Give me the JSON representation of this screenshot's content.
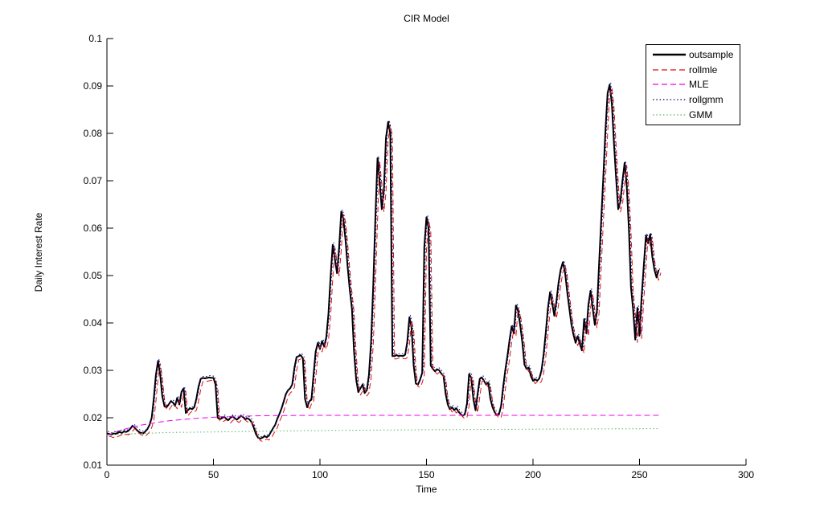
{
  "figure": {
    "title": "CIR Model",
    "x_label": "Time",
    "y_label": "Daily Interest Rate"
  },
  "chart_data": {
    "type": "line",
    "title": "CIR Model",
    "xlabel": "Time",
    "ylabel": "Daily Interest Rate",
    "xlim": [
      0,
      300
    ],
    "ylim": [
      0.01,
      0.1
    ],
    "x_ticks": [
      0,
      50,
      100,
      150,
      200,
      250,
      300
    ],
    "x_tick_labels": [
      "0",
      "50",
      "100",
      "150",
      "200",
      "250",
      "300"
    ],
    "y_ticks": [
      0.01,
      0.02,
      0.03,
      0.04,
      0.05,
      0.06,
      0.07,
      0.08,
      0.09,
      0.1
    ],
    "y_tick_labels": [
      "0.01",
      "0.02",
      "0.03",
      "0.04",
      "0.05",
      "0.06",
      "0.07",
      "0.08",
      "0.09",
      "0.1"
    ],
    "grid": false,
    "legend_position": "top-right",
    "series": [
      {
        "name": "outsample",
        "color": "#000000",
        "line_style": "solid",
        "line_width": 2,
        "x_start": 0,
        "x_step": 1,
        "values": [
          0.0167,
          0.0166,
          0.0164,
          0.0167,
          0.0166,
          0.0168,
          0.017,
          0.0168,
          0.0171,
          0.017,
          0.0172,
          0.0177,
          0.0183,
          0.0179,
          0.0174,
          0.017,
          0.0168,
          0.0167,
          0.0171,
          0.0176,
          0.0185,
          0.02,
          0.024,
          0.029,
          0.032,
          0.029,
          0.0245,
          0.0224,
          0.0222,
          0.0228,
          0.0235,
          0.0232,
          0.0225,
          0.0242,
          0.0228,
          0.0255,
          0.0262,
          0.021,
          0.0216,
          0.022,
          0.0218,
          0.0222,
          0.024,
          0.0265,
          0.0282,
          0.0284,
          0.0283,
          0.0284,
          0.0285,
          0.0284,
          0.0284,
          0.027,
          0.02,
          0.0197,
          0.0199,
          0.0202,
          0.0198,
          0.0195,
          0.02,
          0.0203,
          0.0199,
          0.0196,
          0.02,
          0.0204,
          0.0201,
          0.0197,
          0.0199,
          0.0196,
          0.019,
          0.0178,
          0.0165,
          0.0158,
          0.0156,
          0.0158,
          0.0161,
          0.0159,
          0.0162,
          0.017,
          0.0178,
          0.0185,
          0.0198,
          0.0208,
          0.022,
          0.0235,
          0.025,
          0.0258,
          0.0262,
          0.027,
          0.0305,
          0.0328,
          0.033,
          0.0332,
          0.0325,
          0.024,
          0.0222,
          0.0235,
          0.0238,
          0.029,
          0.034,
          0.0358,
          0.0345,
          0.0362,
          0.035,
          0.037,
          0.042,
          0.05,
          0.0565,
          0.0535,
          0.0505,
          0.056,
          0.0635,
          0.062,
          0.0575,
          0.0519,
          0.047,
          0.043,
          0.034,
          0.028,
          0.0254,
          0.0262,
          0.027,
          0.0252,
          0.0258,
          0.029,
          0.036,
          0.048,
          0.062,
          0.0748,
          0.07,
          0.064,
          0.068,
          0.079,
          0.0824,
          0.08,
          0.033,
          0.033,
          0.0332,
          0.033,
          0.0331,
          0.033,
          0.0333,
          0.036,
          0.0412,
          0.039,
          0.031,
          0.0272,
          0.027,
          0.028,
          0.0295,
          0.056,
          0.0623,
          0.06,
          0.031,
          0.0303,
          0.0298,
          0.0302,
          0.03,
          0.0293,
          0.0288,
          0.025,
          0.0228,
          0.0218,
          0.0222,
          0.0216,
          0.022,
          0.0213,
          0.0208,
          0.0204,
          0.0207,
          0.023,
          0.0292,
          0.0285,
          0.024,
          0.0216,
          0.025,
          0.0282,
          0.0285,
          0.0278,
          0.027,
          0.0274,
          0.024,
          0.0222,
          0.0212,
          0.0205,
          0.0207,
          0.0225,
          0.0265,
          0.03,
          0.033,
          0.0365,
          0.0393,
          0.0378,
          0.0437,
          0.0425,
          0.0395,
          0.0358,
          0.0312,
          0.0303,
          0.0306,
          0.0288,
          0.0278,
          0.0281,
          0.0278,
          0.0283,
          0.03,
          0.0335,
          0.038,
          0.043,
          0.0465,
          0.0442,
          0.0415,
          0.0445,
          0.0485,
          0.0512,
          0.0528,
          0.0508,
          0.0468,
          0.0432,
          0.0398,
          0.0375,
          0.0358,
          0.0372,
          0.0356,
          0.0342,
          0.0408,
          0.0378,
          0.0438,
          0.0468,
          0.0432,
          0.0396,
          0.0425,
          0.052,
          0.0615,
          0.0705,
          0.0805,
          0.0885,
          0.0903,
          0.0862,
          0.078,
          0.0705,
          0.064,
          0.0655,
          0.07,
          0.0738,
          0.069,
          0.0598,
          0.0475,
          0.0428,
          0.0365,
          0.0432,
          0.0373,
          0.0455,
          0.052,
          0.0585,
          0.0568,
          0.0587,
          0.054,
          0.0512,
          0.0496,
          0.0512
        ]
      },
      {
        "name": "rollmle",
        "color": "#dd1111",
        "line_style": "dashed",
        "line_width": 1,
        "derived_from": "outsample",
        "lag": 1,
        "offset": -0.0006,
        "note": "rolling-MLE one-step forecast; visually overlaps outsample with slight lag"
      },
      {
        "name": "MLE",
        "color": "#ee00ee",
        "line_style": "dashed",
        "line_width": 1,
        "points": [
          [
            0,
            0.0163
          ],
          [
            5,
            0.01715
          ],
          [
            10,
            0.0178
          ],
          [
            15,
            0.01835
          ],
          [
            20,
            0.01875
          ],
          [
            25,
            0.0191
          ],
          [
            30,
            0.0194
          ],
          [
            35,
            0.0196
          ],
          [
            40,
            0.0198
          ],
          [
            45,
            0.01995
          ],
          [
            50,
            0.0201
          ],
          [
            55,
            0.0202
          ],
          [
            60,
            0.0203
          ],
          [
            70,
            0.0204
          ],
          [
            80,
            0.02045
          ],
          [
            100,
            0.0205
          ],
          [
            130,
            0.0205
          ],
          [
            160,
            0.0205
          ],
          [
            200,
            0.0205
          ],
          [
            230,
            0.0205
          ],
          [
            259,
            0.0205
          ]
        ]
      },
      {
        "name": "rollgmm",
        "color": "#000088",
        "line_style": "dotted",
        "line_width": 1,
        "derived_from": "outsample",
        "lag": 0.5,
        "offset": 0.0004,
        "note": "rolling-GMM one-step forecast; visually overlaps outsample"
      },
      {
        "name": "GMM",
        "color": "#55b866",
        "line_style": "dotted",
        "line_width": 1,
        "points": [
          [
            0,
            0.0164
          ],
          [
            10,
            0.0166
          ],
          [
            20,
            0.01675
          ],
          [
            30,
            0.0169
          ],
          [
            40,
            0.01695
          ],
          [
            50,
            0.017
          ],
          [
            60,
            0.01705
          ],
          [
            80,
            0.0172
          ],
          [
            100,
            0.0173
          ],
          [
            130,
            0.0174
          ],
          [
            160,
            0.0175
          ],
          [
            200,
            0.0176
          ],
          [
            230,
            0.01765
          ],
          [
            259,
            0.0177
          ]
        ]
      }
    ]
  },
  "legend": {
    "labels": [
      "outsample",
      "rollmle",
      "MLE",
      "rollgmm",
      "GMM"
    ]
  }
}
